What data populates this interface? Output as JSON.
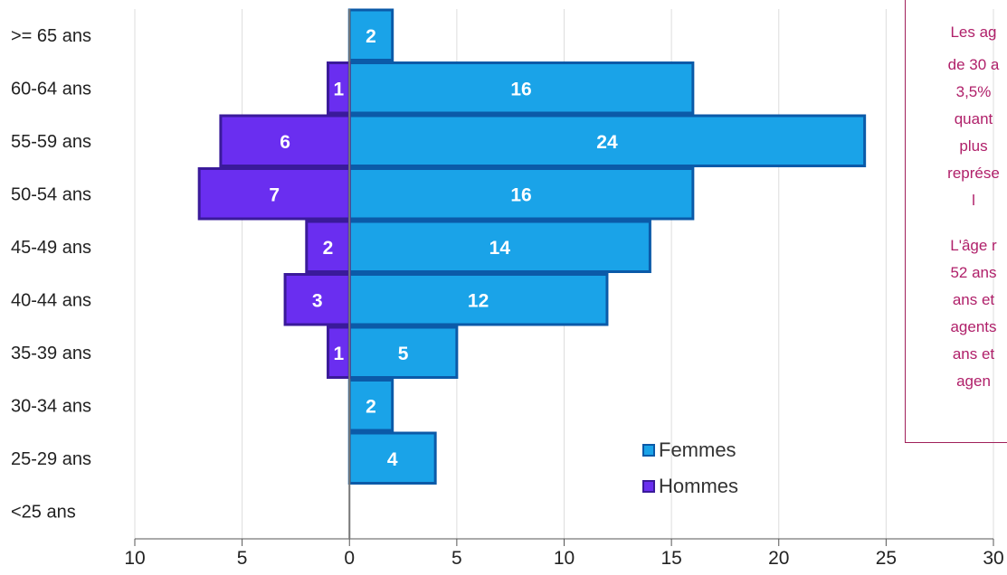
{
  "chart_data": {
    "type": "bar",
    "orientation": "horizontal",
    "categories": [
      ">= 65 ans",
      "60-64 ans",
      "55-59 ans",
      "50-54 ans",
      "45-49 ans",
      "40-44 ans",
      "35-39 ans",
      "30-34 ans",
      "25-29 ans",
      "<25 ans"
    ],
    "series": [
      {
        "name": "Femmes",
        "values": [
          2,
          16,
          24,
          16,
          14,
          12,
          5,
          2,
          4,
          0
        ],
        "color": "#1aa3e8"
      },
      {
        "name": "Hommes",
        "values": [
          0,
          1,
          6,
          7,
          2,
          3,
          1,
          0,
          0,
          0
        ],
        "color": "#6a2ef0"
      }
    ],
    "x_ticks": [
      "10",
      "5",
      "0",
      "5",
      "10",
      "15",
      "20",
      "25",
      "30"
    ],
    "xlim": [
      -10,
      30
    ],
    "grid": true,
    "legend_position": "bottom-right"
  },
  "note": {
    "lines_1": [
      "Les ag",
      "de 30 a",
      "3,5%",
      "quant",
      "plus",
      "représe",
      "l"
    ],
    "lines_2": [
      "L'âge r",
      "52 ans",
      "ans et",
      "agents",
      "ans et",
      "agen"
    ]
  }
}
